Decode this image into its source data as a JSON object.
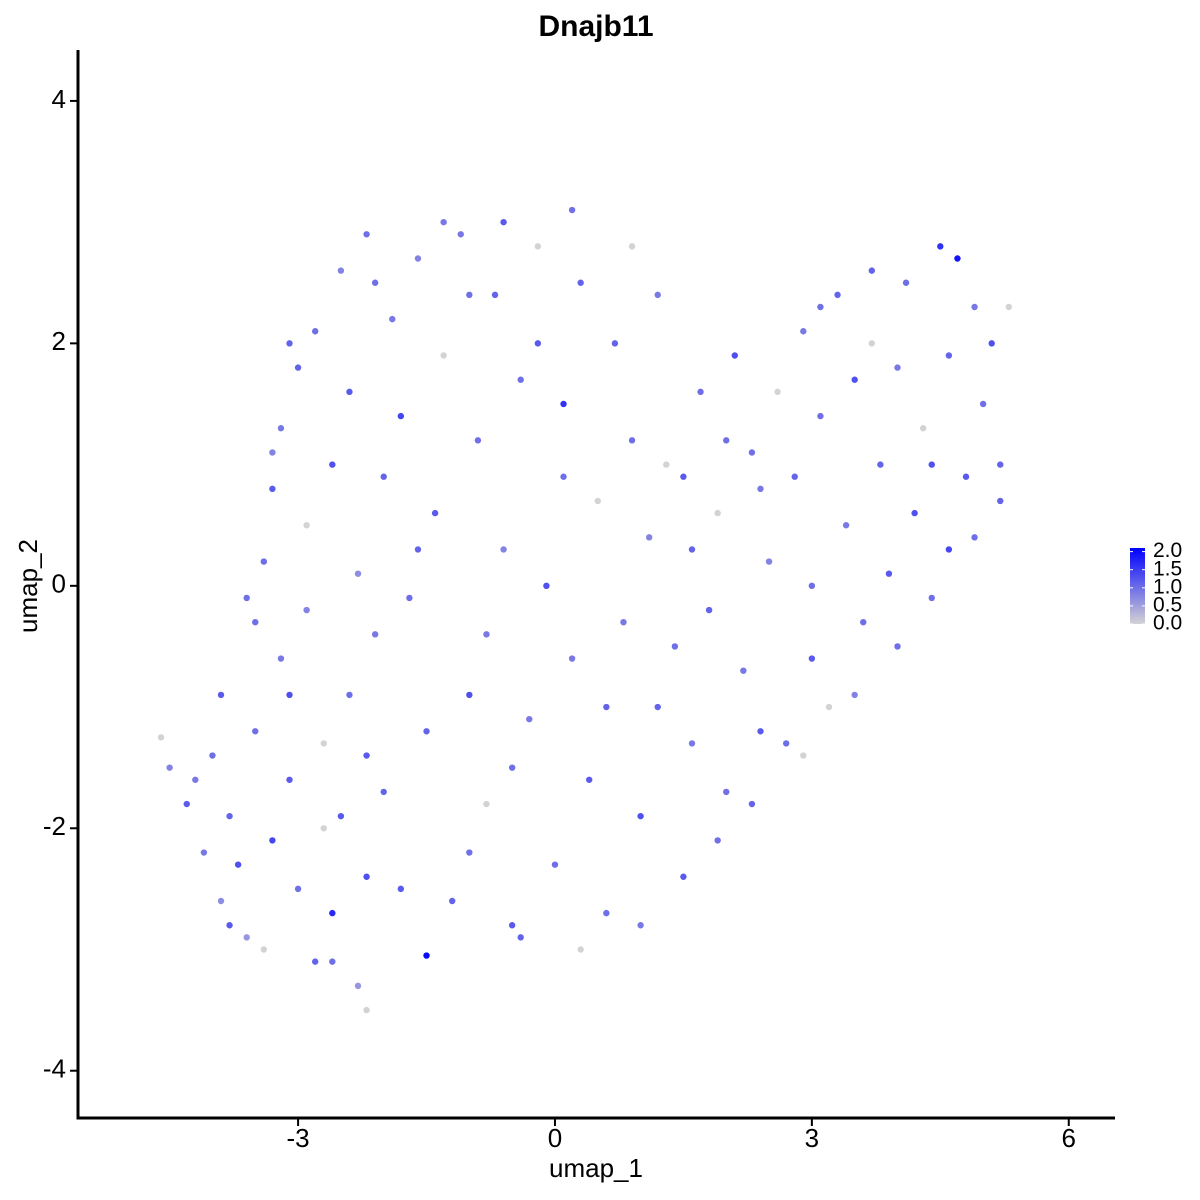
{
  "chart_data": {
    "type": "scatter",
    "title": "Dnajb11",
    "xlabel": "umap_1",
    "ylabel": "umap_2",
    "xlim": [
      -5.57,
      6.54
    ],
    "xticks": [
      -3,
      0,
      3,
      6
    ],
    "ylim": [
      -4.39,
      4.42
    ],
    "yticks": [
      -4,
      -2,
      0,
      2,
      4
    ],
    "colorbar": {
      "lim": [
        0,
        2.1
      ],
      "low": "#d3d3d3",
      "high": "#0000ff",
      "ticks": [
        {
          "value": 0,
          "label": "0.0"
        },
        {
          "value": 0.5,
          "label": "0.5"
        },
        {
          "value": 1,
          "label": "1.0"
        },
        {
          "value": 1.5,
          "label": "1.5"
        },
        {
          "value": 2,
          "label": "2.0"
        }
      ]
    },
    "x": [
      -4.6,
      -4.5,
      -4.3,
      -4.1,
      -4.0,
      -3.9,
      -3.8,
      -3.7,
      -3.6,
      -3.5,
      -3.4,
      -3.3,
      -3.2,
      -3.1,
      -3.0,
      -2.9,
      -2.8,
      -2.7,
      -2.6,
      -2.5,
      -2.4,
      -2.3,
      -2.2,
      -2.1,
      -2.0,
      -3.4,
      -3.3,
      -3.2,
      -3.0,
      -2.9,
      -2.8,
      -2.6,
      -2.5,
      -2.4,
      -2.3,
      -2.2,
      -2.0,
      -1.9,
      -1.8,
      -1.7,
      -1.6,
      -1.5,
      -1.4,
      -1.3,
      -1.2,
      -1.1,
      -1.0,
      -0.9,
      -0.8,
      -0.7,
      -0.6,
      -0.5,
      -0.4,
      -0.3,
      -0.2,
      -0.1,
      0.0,
      0.1,
      0.2,
      0.3,
      0.4,
      0.5,
      0.6,
      0.7,
      0.8,
      0.9,
      1.0,
      1.1,
      1.2,
      1.3,
      1.4,
      1.5,
      1.6,
      1.7,
      1.8,
      1.9,
      2.0,
      2.1,
      2.2,
      2.3,
      2.4,
      2.5,
      2.6,
      2.7,
      2.8,
      2.9,
      3.0,
      3.1,
      3.2,
      3.3,
      3.4,
      3.5,
      3.6,
      3.7,
      3.8,
      3.9,
      4.0,
      4.1,
      4.2,
      4.3,
      4.4,
      4.5,
      4.6,
      4.7,
      4.8,
      4.9,
      5.0,
      5.1,
      5.2,
      5.3,
      4.0,
      3.5,
      2.9,
      2.3,
      1.9,
      1.5,
      1.0,
      0.3,
      -0.4,
      -1.0,
      -1.8,
      -2.6,
      -2.2,
      -3.8,
      -3.5,
      -3.1,
      -1.5,
      -0.8,
      0.1,
      -0.2,
      -1.0,
      -1.6,
      -2.7,
      -2.2,
      -0.5,
      0.6,
      1.2,
      0.9,
      0.2,
      -0.6,
      -1.3,
      -2.1,
      -3.1,
      -3.3,
      -3.6,
      -3.9,
      -4.2,
      3.7,
      3.1,
      4.4,
      4.9,
      5.2,
      4.6,
      3.0,
      2.4,
      1.6,
      2.0
    ],
    "y": [
      -1.25,
      -1.5,
      -1.8,
      -2.2,
      -1.4,
      -2.6,
      -1.9,
      -2.3,
      -2.9,
      -1.2,
      -3.0,
      -2.1,
      -0.6,
      -1.6,
      -2.5,
      -0.2,
      -3.1,
      -1.3,
      -2.7,
      -1.9,
      -0.9,
      -3.3,
      -2.4,
      -0.4,
      -1.7,
      0.2,
      0.8,
      1.3,
      1.8,
      0.5,
      2.1,
      1.0,
      2.6,
      1.6,
      0.1,
      2.9,
      0.9,
      2.2,
      1.4,
      -0.1,
      2.7,
      -3.05,
      0.6,
      1.9,
      -2.6,
      2.9,
      -0.9,
      1.2,
      -1.8,
      2.4,
      0.3,
      -2.8,
      1.7,
      -1.1,
      2.8,
      0.0,
      -2.3,
      1.5,
      -0.6,
      2.5,
      -1.6,
      0.7,
      -2.7,
      2.0,
      -0.3,
      1.2,
      -1.9,
      0.4,
      -1.0,
      1.0,
      -0.5,
      0.9,
      -1.3,
      1.6,
      -0.2,
      0.6,
      -1.7,
      1.9,
      -0.7,
      1.1,
      -1.2,
      0.2,
      1.6,
      -1.3,
      0.9,
      2.1,
      -0.6,
      1.4,
      -1.0,
      2.4,
      0.5,
      1.7,
      -0.3,
      2.0,
      1.0,
      0.1,
      1.8,
      2.5,
      0.6,
      1.3,
      -0.1,
      2.8,
      1.9,
      2.7,
      0.9,
      2.3,
      1.5,
      2.0,
      0.7,
      2.3,
      -0.5,
      -0.9,
      -1.4,
      -1.8,
      -2.1,
      -2.4,
      -2.8,
      -3.0,
      -2.9,
      -2.2,
      -2.5,
      -3.1,
      -3.5,
      -2.8,
      -0.3,
      -0.9,
      -1.2,
      -0.4,
      0.9,
      2.0,
      2.4,
      0.3,
      -2.0,
      -1.4,
      -1.5,
      -1.0,
      2.4,
      2.8,
      3.1,
      3.0,
      3.0,
      2.5,
      2.0,
      1.1,
      -0.1,
      -0.9,
      -1.6,
      2.6,
      2.3,
      1.0,
      0.4,
      1.0,
      0.3,
      0.0,
      0.8,
      0.3,
      1.2
    ],
    "values": [
      0,
      0.8,
      1.2,
      0.9,
      1.0,
      0.7,
      1.1,
      1.3,
      0.6,
      1.0,
      0,
      1.4,
      0.9,
      1.2,
      1.0,
      0.8,
      1.1,
      0,
      1.7,
      1.2,
      1.0,
      0.6,
      1.3,
      0.9,
      1.1,
      1.0,
      1.2,
      0.9,
      1.1,
      0,
      1.0,
      1.3,
      0.8,
      1.2,
      0.7,
      1.0,
      1.1,
      0.9,
      1.4,
      1.0,
      0.8,
      2.0,
      1.2,
      0,
      1.1,
      0.9,
      1.3,
      1.0,
      0,
      1.1,
      0.8,
      1.2,
      1.0,
      0.9,
      0,
      1.3,
      1.0,
      1.6,
      0.9,
      1.1,
      1.2,
      0,
      1.0,
      1.1,
      0.9,
      1.0,
      1.3,
      0.8,
      1.1,
      0,
      1.0,
      1.2,
      0.9,
      1.0,
      1.1,
      0,
      1.0,
      1.3,
      0.9,
      1.0,
      1.2,
      0.8,
      0,
      1.0,
      1.1,
      0.9,
      1.2,
      1.0,
      0,
      1.1,
      0.9,
      1.3,
      1.0,
      0,
      1.1,
      1.2,
      0.9,
      1.0,
      1.3,
      0,
      1.0,
      1.6,
      1.1,
      1.9,
      1.2,
      0.9,
      1.0,
      1.3,
      1.1,
      0,
      1.0,
      0.8,
      0,
      1.1,
      1.0,
      1.2,
      0.9,
      0,
      1.1,
      1.0,
      1.2,
      1.0,
      0,
      1.2,
      1.0,
      1.3,
      1.1,
      0.9,
      1.0,
      1.2,
      1.0,
      1.1,
      0,
      1.2,
      1.0,
      1.1,
      0.9,
      0,
      1.0,
      1.2,
      0.9,
      1.0,
      1.1,
      0.8,
      1.0,
      1.2,
      0.9,
      1.1,
      1.0,
      1.3,
      1.0,
      1.1,
      1.4,
      1.0,
      0.9,
      1.1,
      1.0
    ]
  }
}
